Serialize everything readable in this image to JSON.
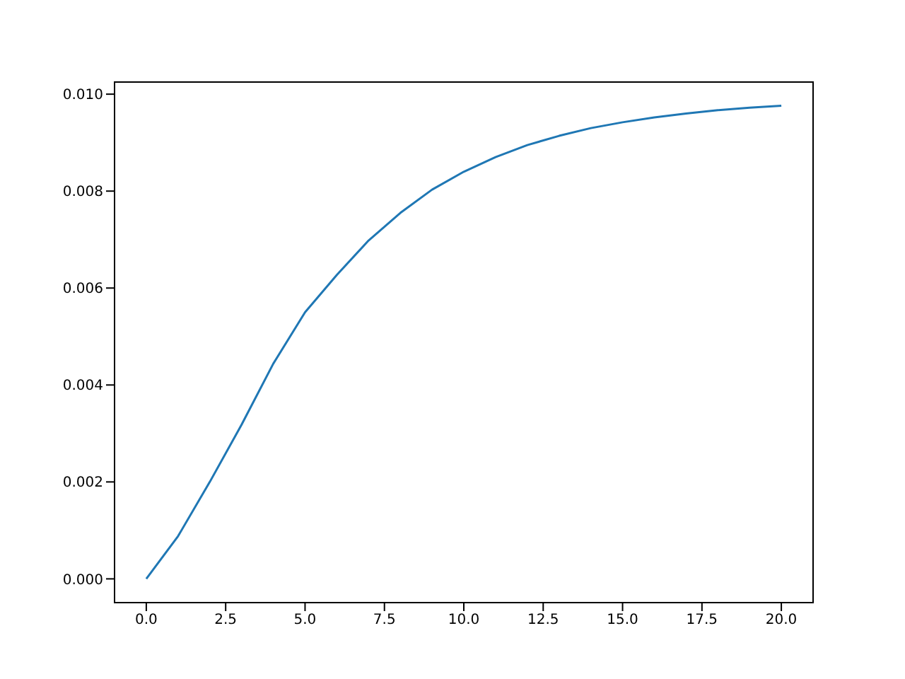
{
  "chart_data": {
    "type": "line",
    "x": [
      0,
      1,
      2,
      3,
      4,
      5,
      6,
      7,
      8,
      9,
      10,
      11,
      12,
      13,
      14,
      15,
      16,
      17,
      18,
      19,
      20
    ],
    "series": [
      {
        "color": "#1f77b4",
        "values": [
          0,
          0.00088,
          0.002,
          0.00318,
          0.00444,
          0.0055,
          0.00627,
          0.00698,
          0.00755,
          0.00803,
          0.0084,
          0.0087,
          0.00895,
          0.00914,
          0.0093,
          0.00942,
          0.00952,
          0.0096,
          0.00967,
          0.00972,
          0.00976
        ]
      }
    ],
    "xlim": [
      -1,
      21
    ],
    "xticks": [
      {
        "value": 0,
        "label": "0.0"
      },
      {
        "value": 2.5,
        "label": "2.5"
      },
      {
        "value": 5,
        "label": "5.0"
      },
      {
        "value": 7.5,
        "label": "7.5"
      },
      {
        "value": 10,
        "label": "10.0"
      },
      {
        "value": 12.5,
        "label": "12.5"
      },
      {
        "value": 15,
        "label": "15.0"
      },
      {
        "value": 17.5,
        "label": "17.5"
      },
      {
        "value": 20,
        "label": "20.0"
      }
    ],
    "ylim": [
      -0.00049,
      0.01025
    ],
    "yticks": [
      {
        "value": 0,
        "label": "0.000"
      },
      {
        "value": 0.002,
        "label": "0.002"
      },
      {
        "value": 0.004,
        "label": "0.004"
      },
      {
        "value": 0.006,
        "label": "0.006"
      },
      {
        "value": 0.008,
        "label": "0.008"
      },
      {
        "value": 0.01,
        "label": "0.010"
      }
    ],
    "grid": false,
    "legend": false,
    "marker": "none",
    "line_style": "solid"
  }
}
